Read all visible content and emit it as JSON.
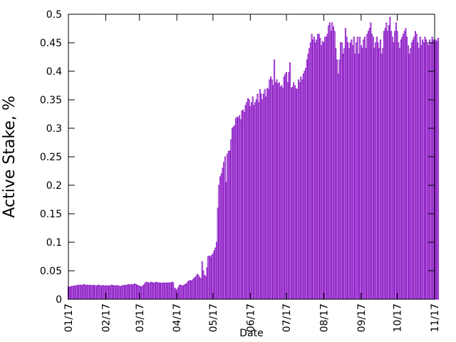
{
  "chart_data": {
    "type": "bar",
    "title": "",
    "xlabel": "Date",
    "ylabel": "Active Stake, %",
    "bar_color": "#8000c0",
    "grid": false,
    "legend": "none",
    "xlim": [
      "2017-01-01",
      "2017-11-01"
    ],
    "ylim": [
      0,
      0.5
    ],
    "x_ticks": [
      "01/17",
      "02/17",
      "03/17",
      "04/17",
      "05/17",
      "06/17",
      "07/17",
      "08/17",
      "09/17",
      "10/17",
      "11/17"
    ],
    "y_ticks": [
      "0",
      "0.05",
      "0.1",
      "0.15",
      "0.2",
      "0.25",
      "0.3",
      "0.35",
      "0.4",
      "0.45",
      "0.5"
    ],
    "x": [
      "2017-01-01",
      "2017-01-02",
      "2017-01-03",
      "2017-01-04",
      "2017-01-05",
      "2017-01-06",
      "2017-01-07",
      "2017-01-08",
      "2017-01-09",
      "2017-01-10",
      "2017-01-11",
      "2017-01-12",
      "2017-01-13",
      "2017-01-14",
      "2017-01-15",
      "2017-01-16",
      "2017-01-17",
      "2017-01-18",
      "2017-01-19",
      "2017-01-20",
      "2017-01-21",
      "2017-01-22",
      "2017-01-23",
      "2017-01-24",
      "2017-01-25",
      "2017-01-26",
      "2017-01-27",
      "2017-01-28",
      "2017-01-29",
      "2017-01-30",
      "2017-01-31",
      "2017-02-01",
      "2017-02-02",
      "2017-02-03",
      "2017-02-04",
      "2017-02-05",
      "2017-02-06",
      "2017-02-07",
      "2017-02-08",
      "2017-02-09",
      "2017-02-10",
      "2017-02-11",
      "2017-02-12",
      "2017-02-13",
      "2017-02-14",
      "2017-02-15",
      "2017-02-16",
      "2017-02-17",
      "2017-02-18",
      "2017-02-19",
      "2017-02-20",
      "2017-02-21",
      "2017-02-22",
      "2017-02-23",
      "2017-02-24",
      "2017-02-25",
      "2017-02-26",
      "2017-02-27",
      "2017-02-28",
      "2017-03-01",
      "2017-03-02",
      "2017-03-03",
      "2017-03-04",
      "2017-03-05",
      "2017-03-06",
      "2017-03-07",
      "2017-03-08",
      "2017-03-09",
      "2017-03-10",
      "2017-03-11",
      "2017-03-12",
      "2017-03-13",
      "2017-03-14",
      "2017-03-15",
      "2017-03-16",
      "2017-03-17",
      "2017-03-18",
      "2017-03-19",
      "2017-03-20",
      "2017-03-21",
      "2017-03-22",
      "2017-03-23",
      "2017-03-24",
      "2017-03-25",
      "2017-03-26",
      "2017-03-27",
      "2017-03-28",
      "2017-03-29",
      "2017-03-30",
      "2017-03-31",
      "2017-04-01",
      "2017-04-02",
      "2017-04-03",
      "2017-04-04",
      "2017-04-05",
      "2017-04-06",
      "2017-04-07",
      "2017-04-08",
      "2017-04-09",
      "2017-04-10",
      "2017-04-11",
      "2017-04-12",
      "2017-04-13",
      "2017-04-14",
      "2017-04-15",
      "2017-04-16",
      "2017-04-17",
      "2017-04-18",
      "2017-04-19",
      "2017-04-20",
      "2017-04-21",
      "2017-04-22",
      "2017-04-23",
      "2017-04-24",
      "2017-04-25",
      "2017-04-26",
      "2017-04-27",
      "2017-04-28",
      "2017-04-29",
      "2017-04-30",
      "2017-05-01",
      "2017-05-02",
      "2017-05-03",
      "2017-05-04",
      "2017-05-05",
      "2017-05-06",
      "2017-05-07",
      "2017-05-08",
      "2017-05-09",
      "2017-05-10",
      "2017-05-11",
      "2017-05-12",
      "2017-05-13",
      "2017-05-14",
      "2017-05-15",
      "2017-05-16",
      "2017-05-17",
      "2017-05-18",
      "2017-05-19",
      "2017-05-20",
      "2017-05-21",
      "2017-05-22",
      "2017-05-23",
      "2017-05-24",
      "2017-05-25",
      "2017-05-26",
      "2017-05-27",
      "2017-05-28",
      "2017-05-29",
      "2017-05-30",
      "2017-05-31",
      "2017-06-01",
      "2017-06-02",
      "2017-06-03",
      "2017-06-04",
      "2017-06-05",
      "2017-06-06",
      "2017-06-07",
      "2017-06-08",
      "2017-06-09",
      "2017-06-10",
      "2017-06-11",
      "2017-06-12",
      "2017-06-13",
      "2017-06-14",
      "2017-06-15",
      "2017-06-16",
      "2017-06-17",
      "2017-06-18",
      "2017-06-19",
      "2017-06-20",
      "2017-06-21",
      "2017-06-22",
      "2017-06-23",
      "2017-06-24",
      "2017-06-25",
      "2017-06-26",
      "2017-06-27",
      "2017-06-28",
      "2017-06-29",
      "2017-06-30",
      "2017-07-01",
      "2017-07-02",
      "2017-07-03",
      "2017-07-04",
      "2017-07-05",
      "2017-07-06",
      "2017-07-07",
      "2017-07-08",
      "2017-07-09",
      "2017-07-10",
      "2017-07-11",
      "2017-07-12",
      "2017-07-13",
      "2017-07-14",
      "2017-07-15",
      "2017-07-16",
      "2017-07-17",
      "2017-07-18",
      "2017-07-19",
      "2017-07-20",
      "2017-07-21",
      "2017-07-22",
      "2017-07-23",
      "2017-07-24",
      "2017-07-25",
      "2017-07-26",
      "2017-07-27",
      "2017-07-28",
      "2017-07-29",
      "2017-07-30",
      "2017-07-31",
      "2017-08-01",
      "2017-08-02",
      "2017-08-03",
      "2017-08-04",
      "2017-08-05",
      "2017-08-06",
      "2017-08-07",
      "2017-08-08",
      "2017-08-09",
      "2017-08-10",
      "2017-08-11",
      "2017-08-12",
      "2017-08-13",
      "2017-08-14",
      "2017-08-15",
      "2017-08-16",
      "2017-08-17",
      "2017-08-18",
      "2017-08-19",
      "2017-08-20",
      "2017-08-21",
      "2017-08-22",
      "2017-08-23",
      "2017-08-24",
      "2017-08-25",
      "2017-08-26",
      "2017-08-27",
      "2017-08-28",
      "2017-08-29",
      "2017-08-30",
      "2017-08-31",
      "2017-09-01",
      "2017-09-02",
      "2017-09-03",
      "2017-09-04",
      "2017-09-05",
      "2017-09-06",
      "2017-09-07",
      "2017-09-08",
      "2017-09-09",
      "2017-09-10",
      "2017-09-11",
      "2017-09-12",
      "2017-09-13",
      "2017-09-14",
      "2017-09-15",
      "2017-09-16",
      "2017-09-17",
      "2017-09-18",
      "2017-09-19",
      "2017-09-20",
      "2017-09-21",
      "2017-09-22",
      "2017-09-23",
      "2017-09-24",
      "2017-09-25",
      "2017-09-26",
      "2017-09-27",
      "2017-09-28",
      "2017-09-29",
      "2017-09-30",
      "2017-10-01",
      "2017-10-02",
      "2017-10-03",
      "2017-10-04",
      "2017-10-05",
      "2017-10-06",
      "2017-10-07",
      "2017-10-08",
      "2017-10-09",
      "2017-10-10",
      "2017-10-11",
      "2017-10-12",
      "2017-10-13",
      "2017-10-14",
      "2017-10-15",
      "2017-10-16",
      "2017-10-17",
      "2017-10-18",
      "2017-10-19",
      "2017-10-20",
      "2017-10-21",
      "2017-10-22",
      "2017-10-23",
      "2017-10-24",
      "2017-10-25",
      "2017-10-26",
      "2017-10-27",
      "2017-10-28",
      "2017-10-29",
      "2017-10-30",
      "2017-10-31",
      "2017-11-01",
      "2017-11-02",
      "2017-11-03",
      "2017-11-04"
    ],
    "values": [
      0.022,
      0.021,
      0.022,
      0.023,
      0.022,
      0.024,
      0.023,
      0.024,
      0.025,
      0.024,
      0.025,
      0.024,
      0.025,
      0.026,
      0.025,
      0.024,
      0.025,
      0.024,
      0.025,
      0.024,
      0.024,
      0.025,
      0.024,
      0.023,
      0.024,
      0.025,
      0.024,
      0.023,
      0.024,
      0.024,
      0.023,
      0.024,
      0.023,
      0.024,
      0.023,
      0.024,
      0.025,
      0.024,
      0.024,
      0.023,
      0.024,
      0.024,
      0.023,
      0.022,
      0.023,
      0.024,
      0.024,
      0.025,
      0.024,
      0.025,
      0.026,
      0.025,
      0.026,
      0.025,
      0.026,
      0.027,
      0.026,
      0.025,
      0.024,
      0.023,
      0.022,
      0.022,
      0.024,
      0.026,
      0.029,
      0.03,
      0.029,
      0.028,
      0.029,
      0.03,
      0.029,
      0.028,
      0.029,
      0.03,
      0.029,
      0.028,
      0.029,
      0.028,
      0.028,
      0.029,
      0.028,
      0.029,
      0.028,
      0.029,
      0.028,
      0.029,
      0.03,
      0.029,
      0.02,
      0.018,
      0.016,
      0.02,
      0.024,
      0.025,
      0.024,
      0.023,
      0.025,
      0.026,
      0.027,
      0.03,
      0.032,
      0.033,
      0.032,
      0.034,
      0.036,
      0.038,
      0.04,
      0.044,
      0.042,
      0.038,
      0.036,
      0.066,
      0.05,
      0.042,
      0.04,
      0.055,
      0.075,
      0.076,
      0.074,
      0.077,
      0.08,
      0.085,
      0.09,
      0.1,
      0.16,
      0.2,
      0.215,
      0.22,
      0.23,
      0.24,
      0.25,
      0.205,
      0.255,
      0.26,
      0.26,
      0.28,
      0.3,
      0.302,
      0.305,
      0.317,
      0.32,
      0.318,
      0.322,
      0.315,
      0.33,
      0.332,
      0.328,
      0.34,
      0.345,
      0.352,
      0.35,
      0.338,
      0.345,
      0.355,
      0.34,
      0.345,
      0.35,
      0.36,
      0.345,
      0.368,
      0.36,
      0.35,
      0.36,
      0.368,
      0.355,
      0.37,
      0.368,
      0.385,
      0.39,
      0.385,
      0.375,
      0.42,
      0.38,
      0.385,
      0.378,
      0.38,
      0.372,
      0.375,
      0.37,
      0.39,
      0.395,
      0.398,
      0.38,
      0.398,
      0.415,
      0.37,
      0.372,
      0.38,
      0.375,
      0.37,
      0.368,
      0.385,
      0.38,
      0.39,
      0.385,
      0.395,
      0.4,
      0.405,
      0.42,
      0.43,
      0.44,
      0.45,
      0.465,
      0.455,
      0.46,
      0.45,
      0.455,
      0.465,
      0.465,
      0.458,
      0.445,
      0.452,
      0.45,
      0.46,
      0.46,
      0.465,
      0.48,
      0.485,
      0.47,
      0.485,
      0.478,
      0.47,
      0.44,
      0.42,
      0.395,
      0.42,
      0.45,
      0.45,
      0.43,
      0.44,
      0.475,
      0.46,
      0.45,
      0.44,
      0.45,
      0.455,
      0.445,
      0.46,
      0.43,
      0.45,
      0.46,
      0.43,
      0.46,
      0.445,
      0.44,
      0.455,
      0.46,
      0.44,
      0.465,
      0.47,
      0.475,
      0.485,
      0.465,
      0.46,
      0.44,
      0.45,
      0.46,
      0.45,
      0.44,
      0.455,
      0.43,
      0.44,
      0.47,
      0.475,
      0.485,
      0.47,
      0.48,
      0.495,
      0.47,
      0.46,
      0.45,
      0.47,
      0.485,
      0.47,
      0.45,
      0.44,
      0.455,
      0.46,
      0.465,
      0.47,
      0.475,
      0.46,
      0.445,
      0.43,
      0.44,
      0.45,
      0.455,
      0.46,
      0.47,
      0.465,
      0.45,
      0.44,
      0.46,
      0.445,
      0.455,
      0.45,
      0.46,
      0.455,
      0.45,
      0.445,
      0.455,
      0.45,
      0.46,
      0.455,
      0.45,
      0.455,
      0.452,
      0.458
    ]
  }
}
